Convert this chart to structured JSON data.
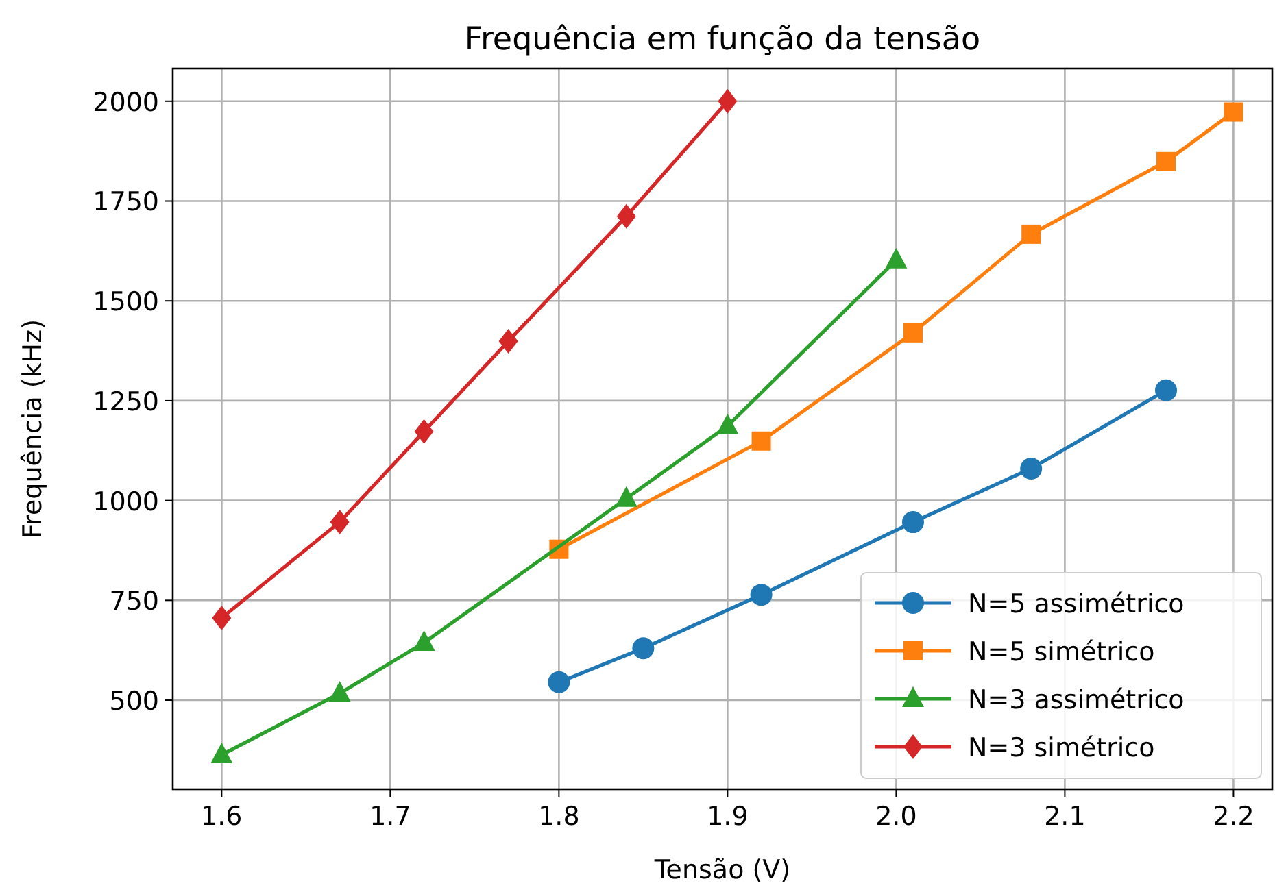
{
  "chart_data": {
    "type": "line",
    "title": "Frequência em função da tensão",
    "xlabel": "Tensão (V)",
    "ylabel": "Frequência (kHz)",
    "xlim": [
      1.571,
      2.223
    ],
    "xticks": [
      {
        "value": 1.6,
        "label": "1.6"
      },
      {
        "value": 1.7,
        "label": "1.7"
      },
      {
        "value": 1.8,
        "label": "1.8"
      },
      {
        "value": 1.9,
        "label": "1.9"
      },
      {
        "value": 2.0,
        "label": "2.0"
      },
      {
        "value": 2.1,
        "label": "2.1"
      },
      {
        "value": 2.2,
        "label": "2.2"
      }
    ],
    "ylim": [
      277,
      2082
    ],
    "yticks": [
      500,
      750,
      1000,
      1250,
      1500,
      1750,
      2000
    ],
    "grid": true,
    "legend": "bottom right",
    "series": [
      {
        "name": "N=5 assimétrico",
        "color": "#1f77b4",
        "marker": "circle",
        "x": [
          1.8,
          1.85,
          1.92,
          2.01,
          2.08,
          2.16
        ],
        "values": [
          545,
          630,
          764,
          946,
          1080,
          1276
        ]
      },
      {
        "name": "N=5 simétrico",
        "color": "#ff7f0e",
        "marker": "square",
        "x": [
          1.8,
          1.92,
          2.01,
          2.08,
          2.16,
          2.2
        ],
        "values": [
          878,
          1149,
          1420,
          1667,
          1849,
          1973
        ]
      },
      {
        "name": "N=3 assimétrico",
        "color": "#2ca02c",
        "marker": "triangle",
        "x": [
          1.6,
          1.67,
          1.72,
          1.84,
          1.9,
          2.0
        ],
        "values": [
          363,
          517,
          644,
          1005,
          1187,
          1602
        ]
      },
      {
        "name": "N=3 simétrico",
        "color": "#d62728",
        "marker": "diamond",
        "x": [
          1.6,
          1.67,
          1.72,
          1.77,
          1.84,
          1.9
        ],
        "values": [
          706,
          946,
          1173,
          1399,
          1712,
          2000
        ]
      }
    ]
  }
}
